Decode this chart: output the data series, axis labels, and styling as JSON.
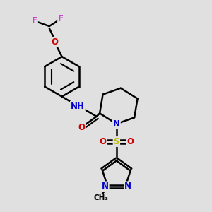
{
  "bg_color": "#e0e0e0",
  "bond_color": "#000000",
  "bond_width": 1.8,
  "F_color": "#cc44cc",
  "O_color": "#cc0000",
  "N_color": "#0000cc",
  "S_color": "#bbbb00",
  "C_color": "#000000",
  "font_size_atom": 8.5,
  "font_size_small": 7.5,
  "xlim": [
    0,
    10
  ],
  "ylim": [
    0,
    10
  ]
}
